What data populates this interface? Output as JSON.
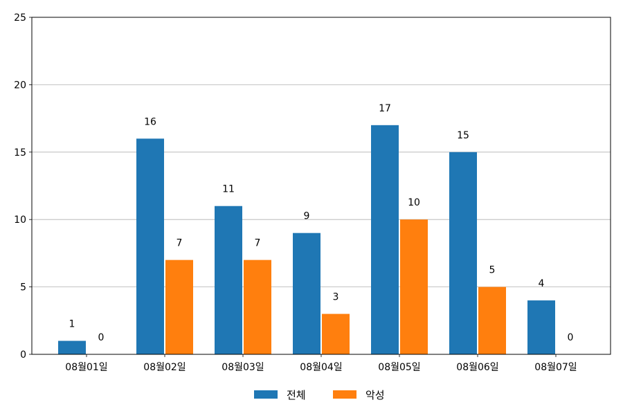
{
  "chart_data": {
    "type": "bar",
    "categories": [
      "08월01일",
      "08월02일",
      "08월03일",
      "08월04일",
      "08월05일",
      "08월06일",
      "08월07일"
    ],
    "series": [
      {
        "name": "전체",
        "values": [
          1,
          16,
          11,
          9,
          17,
          15,
          4
        ],
        "color": "#1f77b4"
      },
      {
        "name": "악성",
        "values": [
          0,
          7,
          7,
          3,
          10,
          5,
          0
        ],
        "color": "#ff7f0e"
      }
    ],
    "title": "",
    "xlabel": "",
    "ylabel": "",
    "ylim": [
      0,
      25
    ],
    "yticks": [
      0,
      5,
      10,
      15,
      20,
      25
    ],
    "grid": "horizontal",
    "legend_position": "bottom-center",
    "data_labels": true
  }
}
